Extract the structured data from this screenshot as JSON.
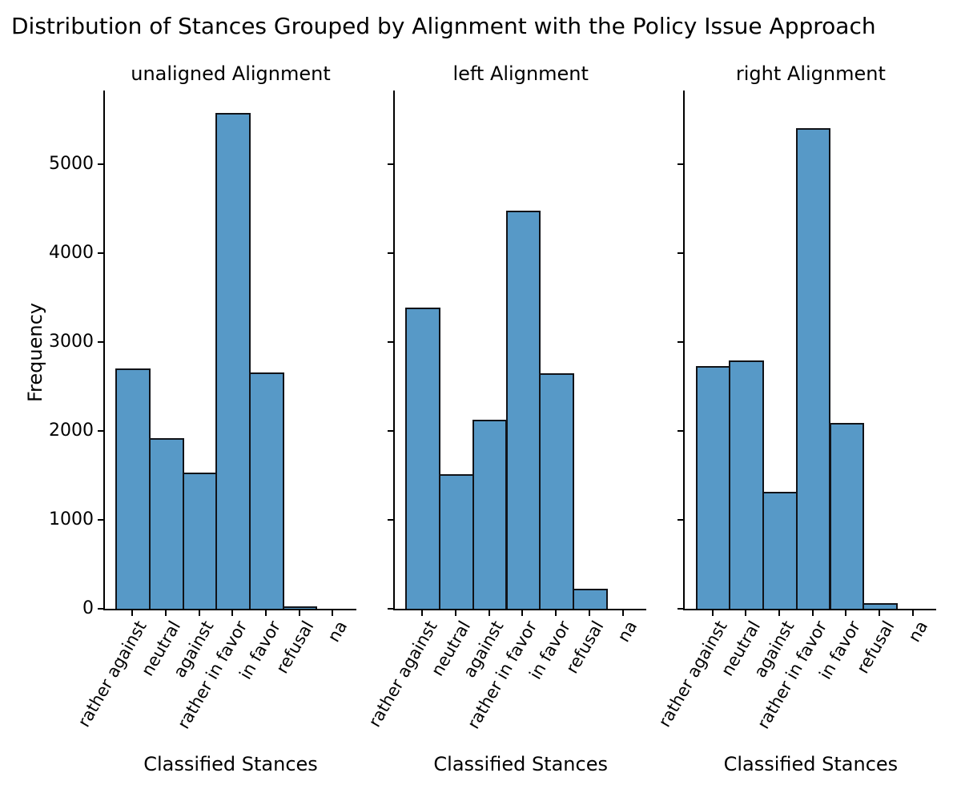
{
  "title": "Distribution of Stances Grouped by Alignment with the Policy Issue Approach",
  "chart_data": {
    "type": "bar",
    "subtype": "histogram-of-categories, 3 side-by-side subplots sharing the y axis",
    "categories": [
      "rather against",
      "neutral",
      "against",
      "rather in favor",
      "in favor",
      "refusal",
      "na"
    ],
    "series": [
      {
        "name": "unaligned Alignment",
        "values": [
          2700,
          1920,
          1530,
          5575,
          2660,
          25,
          0
        ]
      },
      {
        "name": "left Alignment",
        "values": [
          3385,
          1515,
          2125,
          4475,
          2650,
          225,
          0
        ]
      },
      {
        "name": "right Alignment",
        "values": [
          2730,
          2790,
          1315,
          5400,
          2085,
          60,
          0
        ]
      }
    ],
    "title": "Distribution of Stances Grouped by Alignment with the Policy Issue Approach",
    "xlabel": "Classified Stances",
    "ylabel": "Frequency",
    "ylim": [
      0,
      5820
    ],
    "yticks": [
      0,
      1000,
      2000,
      3000,
      4000,
      5000
    ],
    "xtick_rotation_deg": 60,
    "grid": false,
    "legend": "none",
    "bar_color": "#5799C7",
    "bar_edge_color": "#111318",
    "axis_color": "#000000",
    "y_tick_labels_only_on_first_subplot": true
  }
}
